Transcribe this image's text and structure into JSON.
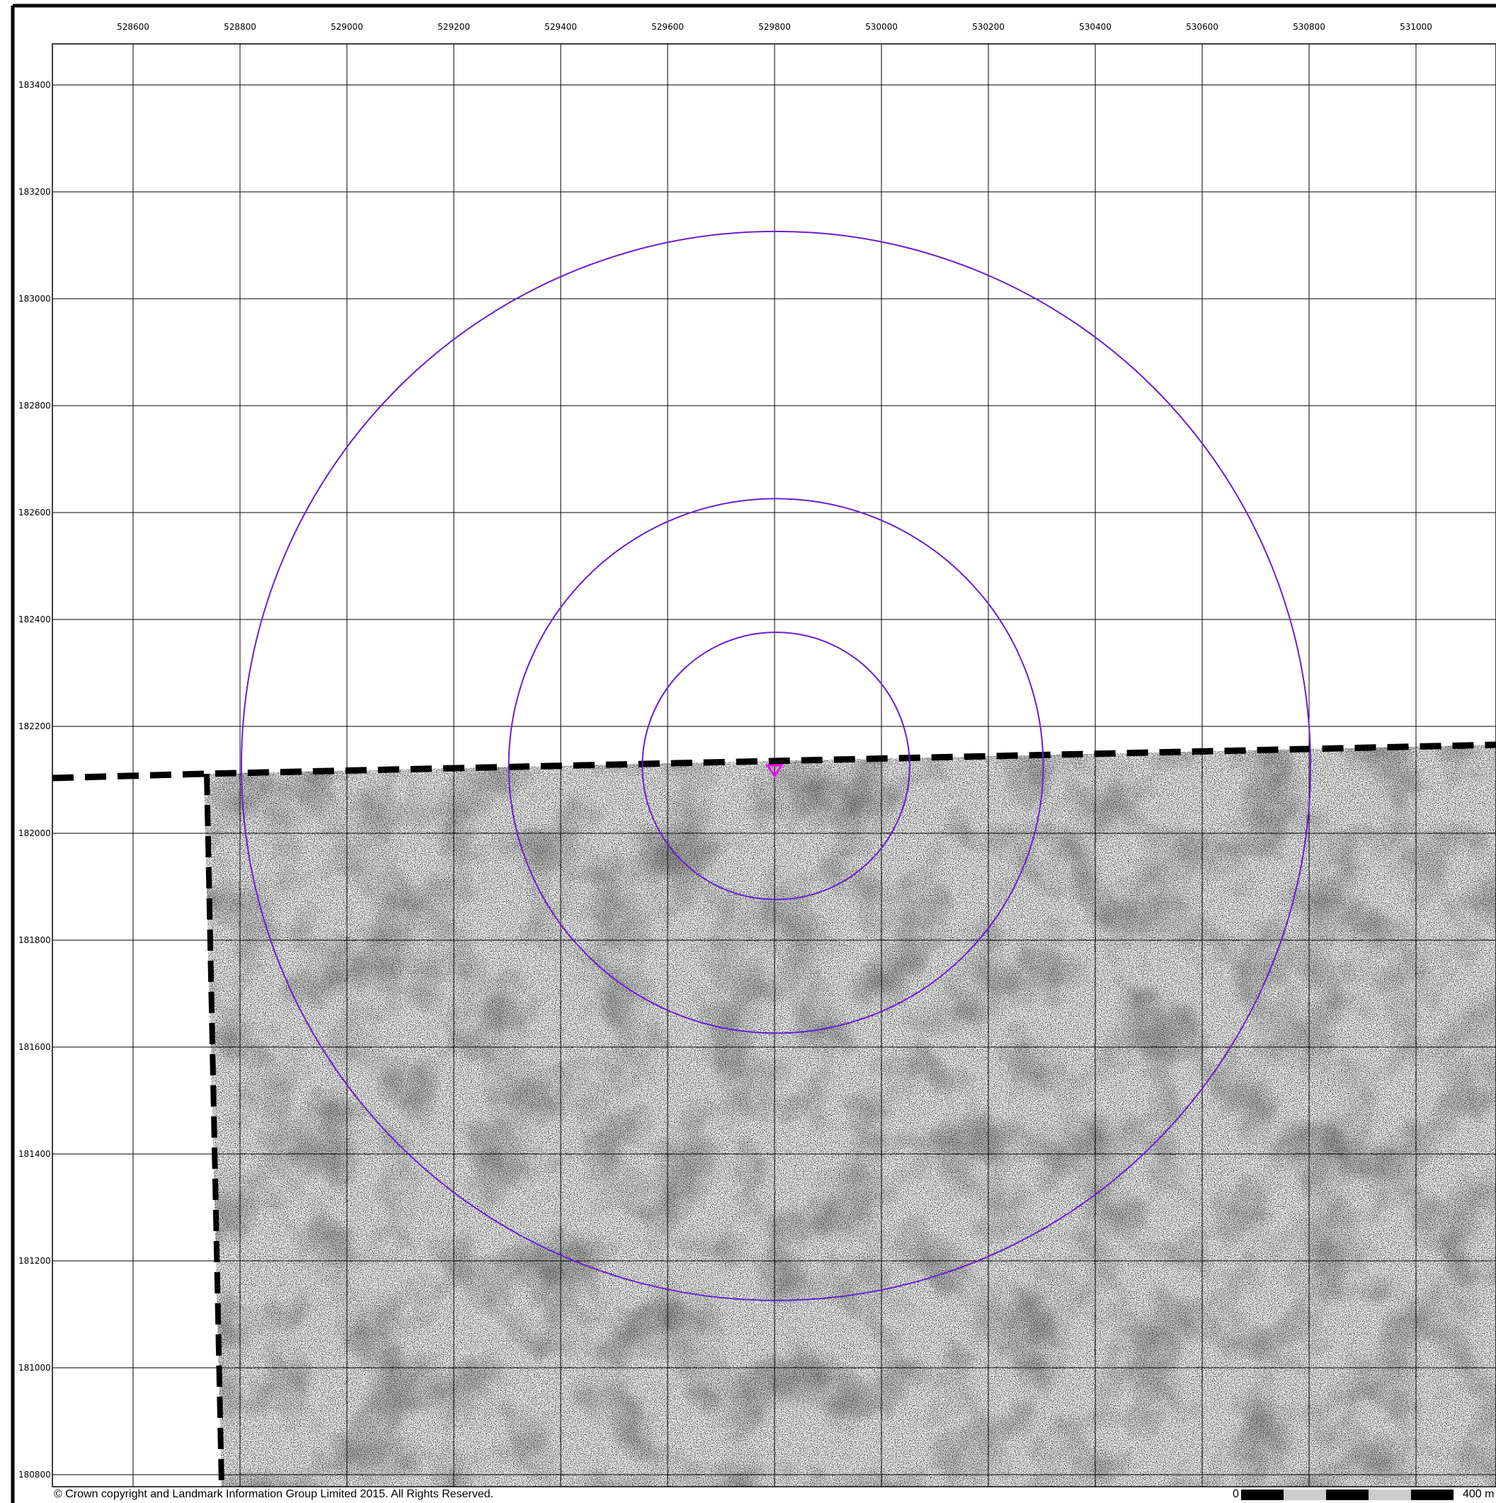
{
  "map": {
    "easting_ticks": [
      "528600",
      "528800",
      "529000",
      "529200",
      "529400",
      "529600",
      "529800",
      "530000",
      "530200",
      "530400",
      "530600",
      "530800",
      "531000"
    ],
    "northing_ticks": [
      "183400",
      "183200",
      "183000",
      "182800",
      "182600",
      "182400",
      "182200",
      "182000",
      "181800",
      "181600",
      "181400",
      "181200",
      "181000",
      "180800"
    ],
    "site_centre": {
      "easting": 529800,
      "northing": 182130
    },
    "buffer_radii_m": [
      250,
      500,
      1000
    ],
    "colors": {
      "buffer": "#6a1fd0",
      "site": "#ff00ff",
      "grid": "#000000",
      "boundary": "#000000",
      "imagery": "#000000"
    },
    "imagery": "grey speckled aerial/raster texture within dashed boundary"
  },
  "footer": {
    "copyright": "© Crown copyright and Landmark Information Group Limited 2015.  All Rights Reserved.",
    "scale_start": "0",
    "scale_end": "400 m"
  }
}
